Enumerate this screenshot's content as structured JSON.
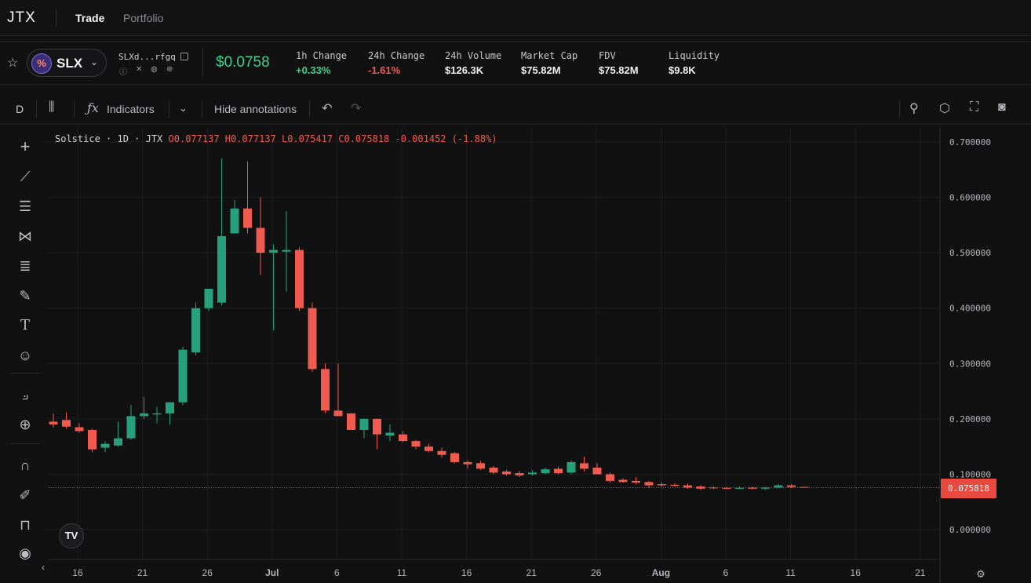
{
  "app": {
    "logo": "JTX"
  },
  "nav": {
    "trade": "Trade",
    "portfolio": "Portfolio"
  },
  "token": {
    "symbol": "SLX",
    "address": "SLXd...rfgq",
    "price": "$0.0758",
    "stats": [
      {
        "label": "1h Change",
        "value": "+0.33%",
        "tone": "pos"
      },
      {
        "label": "24h Change",
        "value": "-1.61%",
        "tone": "neg"
      },
      {
        "label": "24h Volume",
        "value": "$126.3K",
        "tone": ""
      },
      {
        "label": "Market Cap",
        "value": "$75.82M",
        "tone": ""
      },
      {
        "label": "FDV",
        "value": "$75.82M",
        "tone": ""
      },
      {
        "label": "Liquidity",
        "value": "$9.8K",
        "tone": ""
      }
    ]
  },
  "toolbar": {
    "interval": "D",
    "indicators": "Indicators",
    "hide_annotations": "Hide annotations"
  },
  "legend": {
    "title": "Solstice · 1D · JTX",
    "ohlc": "O0.077137 H0.077137 L0.075417 C0.075818 -0.001452 (-1.88%)"
  },
  "colors": {
    "up": "#26a17b",
    "down": "#f05b4f",
    "accent": "#3fcf8e"
  },
  "chart_data": {
    "type": "candlestick",
    "title": "Solstice · 1D · JTX",
    "y_ticks": [
      "0.700000",
      "0.600000",
      "0.500000",
      "0.400000",
      "0.300000",
      "0.200000",
      "0.100000",
      "0.000000"
    ],
    "ylim": [
      0.0,
      0.7
    ],
    "x_ticks": [
      "16",
      "21",
      "26",
      "Jul",
      "6",
      "11",
      "16",
      "21",
      "26",
      "Aug",
      "6",
      "11",
      "16",
      "21"
    ],
    "last_price": "0.075818",
    "grid": true,
    "ohlc": [
      [
        0.195,
        0.21,
        0.185,
        0.19
      ],
      [
        0.198,
        0.212,
        0.182,
        0.186
      ],
      [
        0.185,
        0.192,
        0.175,
        0.178
      ],
      [
        0.18,
        0.182,
        0.14,
        0.145
      ],
      [
        0.148,
        0.16,
        0.14,
        0.155
      ],
      [
        0.152,
        0.195,
        0.15,
        0.165
      ],
      [
        0.165,
        0.225,
        0.162,
        0.205
      ],
      [
        0.205,
        0.24,
        0.2,
        0.21
      ],
      [
        0.208,
        0.222,
        0.192,
        0.21
      ],
      [
        0.21,
        0.23,
        0.19,
        0.23
      ],
      [
        0.23,
        0.33,
        0.225,
        0.325
      ],
      [
        0.32,
        0.41,
        0.315,
        0.4
      ],
      [
        0.4,
        0.43,
        0.395,
        0.435
      ],
      [
        0.41,
        0.67,
        0.405,
        0.53
      ],
      [
        0.535,
        0.595,
        0.54,
        0.58
      ],
      [
        0.58,
        0.665,
        0.535,
        0.545
      ],
      [
        0.545,
        0.6,
        0.46,
        0.5
      ],
      [
        0.5,
        0.515,
        0.36,
        0.505
      ],
      [
        0.502,
        0.575,
        0.43,
        0.505
      ],
      [
        0.505,
        0.51,
        0.395,
        0.4
      ],
      [
        0.4,
        0.41,
        0.285,
        0.29
      ],
      [
        0.29,
        0.3,
        0.21,
        0.215
      ],
      [
        0.215,
        0.3,
        0.205,
        0.205
      ],
      [
        0.21,
        0.21,
        0.18,
        0.18
      ],
      [
        0.18,
        0.2,
        0.165,
        0.2
      ],
      [
        0.2,
        0.2,
        0.145,
        0.172
      ],
      [
        0.17,
        0.19,
        0.16,
        0.175
      ],
      [
        0.172,
        0.178,
        0.158,
        0.16
      ],
      [
        0.16,
        0.162,
        0.145,
        0.15
      ],
      [
        0.15,
        0.155,
        0.14,
        0.142
      ],
      [
        0.142,
        0.148,
        0.13,
        0.135
      ],
      [
        0.138,
        0.14,
        0.12,
        0.122
      ],
      [
        0.122,
        0.125,
        0.11,
        0.118
      ],
      [
        0.12,
        0.124,
        0.108,
        0.11
      ],
      [
        0.112,
        0.115,
        0.1,
        0.103
      ],
      [
        0.105,
        0.108,
        0.098,
        0.1
      ],
      [
        0.102,
        0.106,
        0.095,
        0.098
      ],
      [
        0.1,
        0.108,
        0.098,
        0.103
      ],
      [
        0.102,
        0.112,
        0.1,
        0.109
      ],
      [
        0.11,
        0.114,
        0.1,
        0.102
      ],
      [
        0.103,
        0.125,
        0.1,
        0.122
      ],
      [
        0.12,
        0.132,
        0.105,
        0.11
      ],
      [
        0.112,
        0.12,
        0.1,
        0.1
      ],
      [
        0.1,
        0.103,
        0.085,
        0.088
      ],
      [
        0.09,
        0.093,
        0.085,
        0.086
      ],
      [
        0.088,
        0.095,
        0.082,
        0.085
      ],
      [
        0.086,
        0.088,
        0.075,
        0.08
      ],
      [
        0.082,
        0.085,
        0.078,
        0.08
      ],
      [
        0.081,
        0.084,
        0.078,
        0.079
      ],
      [
        0.08,
        0.083,
        0.074,
        0.076
      ],
      [
        0.078,
        0.08,
        0.072,
        0.074
      ],
      [
        0.076,
        0.078,
        0.073,
        0.075
      ],
      [
        0.075,
        0.077,
        0.073,
        0.074
      ],
      [
        0.075,
        0.078,
        0.074,
        0.075
      ],
      [
        0.076,
        0.078,
        0.073,
        0.074
      ],
      [
        0.074,
        0.077,
        0.072,
        0.076
      ],
      [
        0.076,
        0.082,
        0.075,
        0.08
      ],
      [
        0.08,
        0.082,
        0.075,
        0.077
      ],
      [
        0.077137,
        0.077137,
        0.075417,
        0.075818
      ]
    ]
  }
}
